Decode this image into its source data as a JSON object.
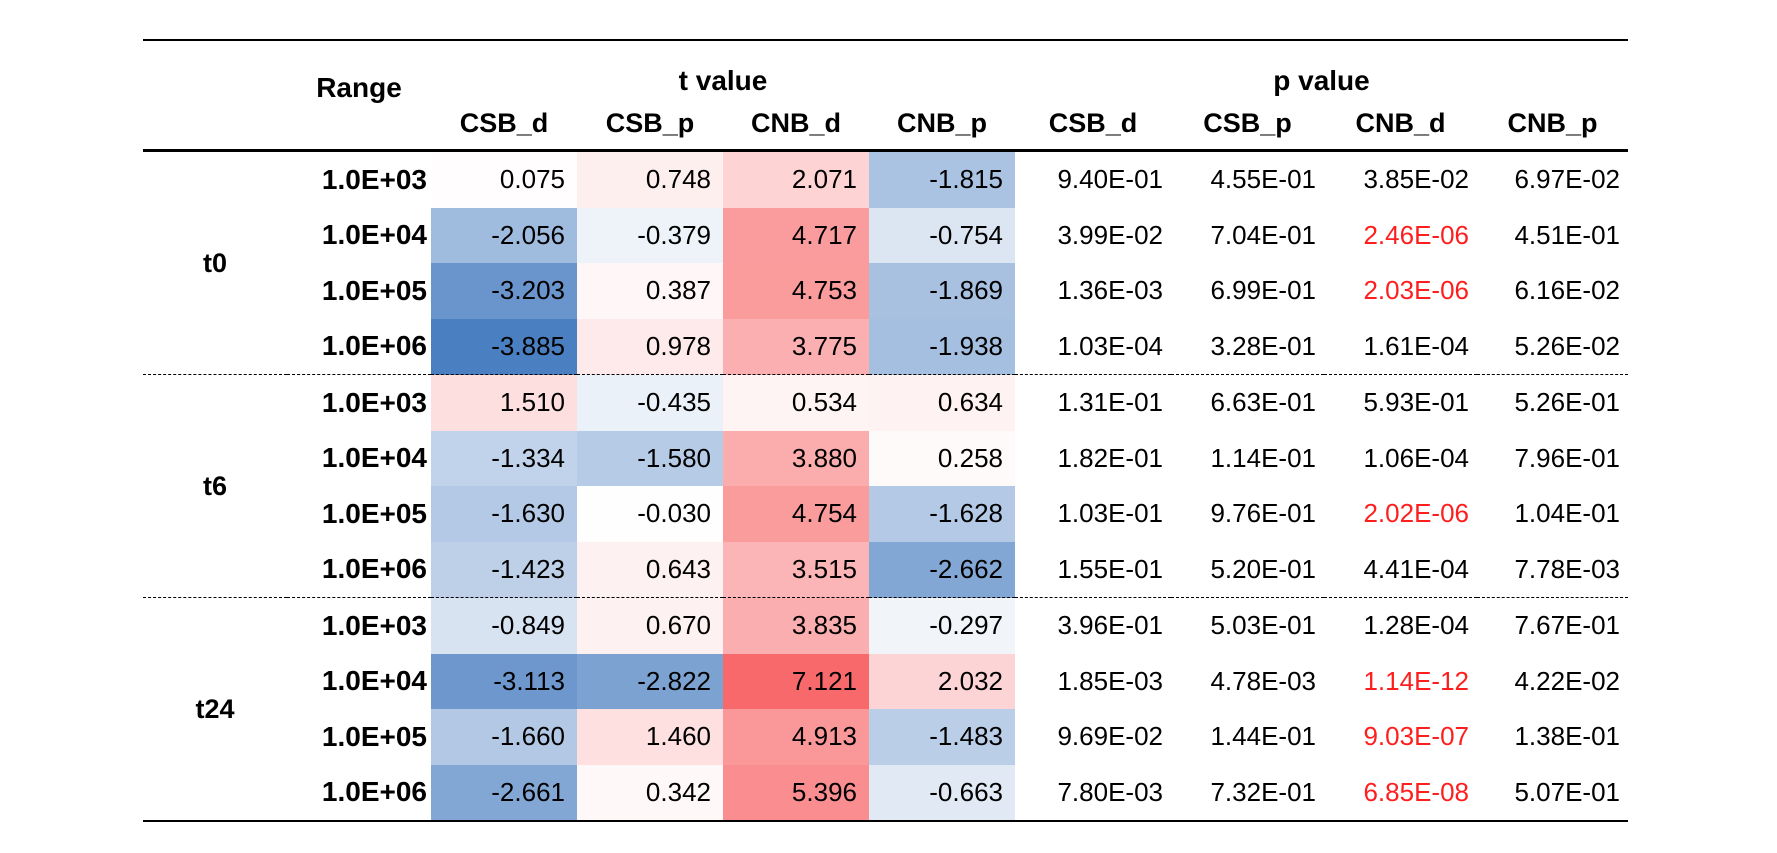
{
  "header": {
    "range_label": "Range",
    "t_group": "t value",
    "p_group": "p value",
    "columns": [
      "CSB_d",
      "CSB_p",
      "CNB_d",
      "CNB_p"
    ]
  },
  "groups": [
    {
      "time": "t0",
      "rows": [
        {
          "range": "1.0E+03",
          "t": [
            "0.075",
            "0.748",
            "2.071",
            "-1.815"
          ],
          "p": [
            "9.40E-01",
            "4.55E-01",
            "3.85E-02",
            "6.97E-02"
          ]
        },
        {
          "range": "1.0E+04",
          "t": [
            "-2.056",
            "-0.379",
            "4.717",
            "-0.754"
          ],
          "p": [
            "3.99E-02",
            "7.04E-01",
            "2.46E-06",
            "4.51E-01"
          ]
        },
        {
          "range": "1.0E+05",
          "t": [
            "-3.203",
            "0.387",
            "4.753",
            "-1.869"
          ],
          "p": [
            "1.36E-03",
            "6.99E-01",
            "2.03E-06",
            "6.16E-02"
          ]
        },
        {
          "range": "1.0E+06",
          "t": [
            "-3.885",
            "0.978",
            "3.775",
            "-1.938"
          ],
          "p": [
            "1.03E-04",
            "3.28E-01",
            "1.61E-04",
            "5.26E-02"
          ]
        }
      ]
    },
    {
      "time": "t6",
      "rows": [
        {
          "range": "1.0E+03",
          "t": [
            "1.510",
            "-0.435",
            "0.534",
            "0.634"
          ],
          "p": [
            "1.31E-01",
            "6.63E-01",
            "5.93E-01",
            "5.26E-01"
          ]
        },
        {
          "range": "1.0E+04",
          "t": [
            "-1.334",
            "-1.580",
            "3.880",
            "0.258"
          ],
          "p": [
            "1.82E-01",
            "1.14E-01",
            "1.06E-04",
            "7.96E-01"
          ]
        },
        {
          "range": "1.0E+05",
          "t": [
            "-1.630",
            "-0.030",
            "4.754",
            "-1.628"
          ],
          "p": [
            "1.03E-01",
            "9.76E-01",
            "2.02E-06",
            "1.04E-01"
          ]
        },
        {
          "range": "1.0E+06",
          "t": [
            "-1.423",
            "0.643",
            "3.515",
            "-2.662"
          ],
          "p": [
            "1.55E-01",
            "5.20E-01",
            "4.41E-04",
            "7.78E-03"
          ]
        }
      ]
    },
    {
      "time": "t24",
      "rows": [
        {
          "range": "1.0E+03",
          "t": [
            "-0.849",
            "0.670",
            "3.835",
            "-0.297"
          ],
          "p": [
            "3.96E-01",
            "5.03E-01",
            "1.28E-04",
            "7.67E-01"
          ]
        },
        {
          "range": "1.0E+04",
          "t": [
            "-3.113",
            "-2.822",
            "7.121",
            "2.032"
          ],
          "p": [
            "1.85E-03",
            "4.78E-03",
            "1.14E-12",
            "4.22E-02"
          ]
        },
        {
          "range": "1.0E+05",
          "t": [
            "-1.660",
            "1.460",
            "4.913",
            "-1.483"
          ],
          "p": [
            "9.69E-02",
            "1.44E-01",
            "9.03E-07",
            "1.38E-01"
          ]
        },
        {
          "range": "1.0E+06",
          "t": [
            "-2.661",
            "0.342",
            "5.396",
            "-0.663"
          ],
          "p": [
            "7.80E-03",
            "7.32E-01",
            "6.85E-08",
            "5.07E-01"
          ]
        }
      ]
    }
  ],
  "colors": {
    "negative": "#4a7fc1",
    "positive": "#f8696b",
    "neutral": "#ffffff",
    "significant_p": "#ff1e1e"
  }
}
